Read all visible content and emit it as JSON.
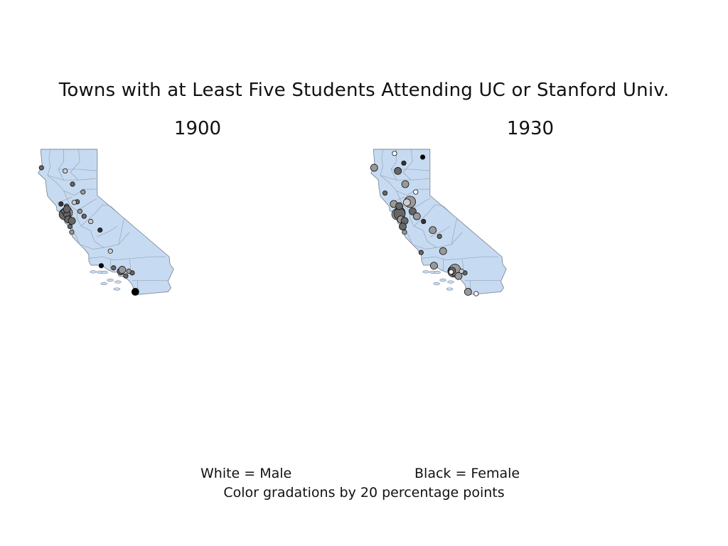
{
  "title": "Towns with at Least Five Students Attending UC or Stanford Univ.",
  "maps": [
    {
      "year": "1900",
      "towns": [
        {
          "lon": -124.16,
          "lat": 40.8,
          "share": 0.6,
          "size": 1
        },
        {
          "lon": -122.27,
          "lat": 37.87,
          "share": 0.4,
          "size": 3
        },
        {
          "lon": -122.42,
          "lat": 37.77,
          "share": 0.6,
          "size": 3
        },
        {
          "lon": -122.27,
          "lat": 37.8,
          "share": 0.6,
          "size": 2
        },
        {
          "lon": -122.17,
          "lat": 37.43,
          "share": 0.6,
          "size": 2
        },
        {
          "lon": -121.89,
          "lat": 37.34,
          "share": 0.6,
          "size": 2
        },
        {
          "lon": -122.03,
          "lat": 36.97,
          "share": 0.6,
          "size": 1
        },
        {
          "lon": -121.49,
          "lat": 38.58,
          "share": 0.6,
          "size": 1
        },
        {
          "lon": -121.29,
          "lat": 37.96,
          "share": 0.4,
          "size": 1
        },
        {
          "lon": -122.7,
          "lat": 38.44,
          "share": 0.8,
          "size": 1
        },
        {
          "lon": -122.29,
          "lat": 38.3,
          "share": 0.6,
          "size": 1
        },
        {
          "lon": -121.72,
          "lat": 38.54,
          "share": 0.2,
          "size": 1
        },
        {
          "lon": -122.52,
          "lat": 37.97,
          "share": 0.6,
          "size": 1
        },
        {
          "lon": -122.26,
          "lat": 38.1,
          "share": 0.6,
          "size": 2
        },
        {
          "lon": -121.9,
          "lat": 36.6,
          "share": 0.4,
          "size": 1
        },
        {
          "lon": -119.79,
          "lat": 36.74,
          "share": 0.8,
          "size": 1
        },
        {
          "lon": -119.02,
          "lat": 35.37,
          "share": 0.2,
          "size": 1
        },
        {
          "lon": -119.7,
          "lat": 34.42,
          "share": 1.0,
          "size": 1
        },
        {
          "lon": -118.24,
          "lat": 34.05,
          "share": 0.6,
          "size": 2
        },
        {
          "lon": -118.14,
          "lat": 34.15,
          "share": 0.4,
          "size": 2
        },
        {
          "lon": -117.39,
          "lat": 33.95,
          "share": 0.6,
          "size": 1
        },
        {
          "lon": -117.16,
          "lat": 32.72,
          "share": 1.0,
          "size": 2
        },
        {
          "lon": -117.87,
          "lat": 33.75,
          "share": 0.6,
          "size": 1
        },
        {
          "lon": -122.39,
          "lat": 40.59,
          "share": 0.2,
          "size": 1
        },
        {
          "lon": -121.84,
          "lat": 39.73,
          "share": 0.6,
          "size": 1
        },
        {
          "lon": -121.06,
          "lat": 39.22,
          "share": 0.4,
          "size": 1
        },
        {
          "lon": -120.98,
          "lat": 37.64,
          "share": 0.6,
          "size": 1
        },
        {
          "lon": -120.48,
          "lat": 37.3,
          "share": 0.2,
          "size": 1
        },
        {
          "lon": -118.78,
          "lat": 34.28,
          "share": 0.6,
          "size": 1
        },
        {
          "lon": -117.65,
          "lat": 34.06,
          "share": 0.4,
          "size": 1
        }
      ]
    },
    {
      "year": "1930",
      "towns": [
        {
          "lon": -124.16,
          "lat": 40.8,
          "share": 0.4,
          "size": 2
        },
        {
          "lon": -122.39,
          "lat": 40.59,
          "share": 0.6,
          "size": 2
        },
        {
          "lon": -121.84,
          "lat": 39.73,
          "share": 0.4,
          "size": 2
        },
        {
          "lon": -121.49,
          "lat": 38.58,
          "share": 0.4,
          "size": 3
        },
        {
          "lon": -121.72,
          "lat": 38.54,
          "share": 0.2,
          "size": 2
        },
        {
          "lon": -122.27,
          "lat": 37.87,
          "share": 0.6,
          "size": 3
        },
        {
          "lon": -122.42,
          "lat": 37.77,
          "share": 0.4,
          "size": 3
        },
        {
          "lon": -122.27,
          "lat": 37.8,
          "share": 0.6,
          "size": 3
        },
        {
          "lon": -122.17,
          "lat": 37.43,
          "share": 0.4,
          "size": 2
        },
        {
          "lon": -121.89,
          "lat": 37.34,
          "share": 0.6,
          "size": 2
        },
        {
          "lon": -122.03,
          "lat": 36.97,
          "share": 0.6,
          "size": 2
        },
        {
          "lon": -121.9,
          "lat": 36.6,
          "share": 0.4,
          "size": 1
        },
        {
          "lon": -121.29,
          "lat": 37.96,
          "share": 0.6,
          "size": 2
        },
        {
          "lon": -120.98,
          "lat": 37.64,
          "share": 0.4,
          "size": 2
        },
        {
          "lon": -119.79,
          "lat": 36.74,
          "share": 0.4,
          "size": 2
        },
        {
          "lon": -119.02,
          "lat": 35.37,
          "share": 0.4,
          "size": 2
        },
        {
          "lon": -119.7,
          "lat": 34.42,
          "share": 0.4,
          "size": 2
        },
        {
          "lon": -118.24,
          "lat": 34.05,
          "share": 0.6,
          "size": 3
        },
        {
          "lon": -118.14,
          "lat": 34.15,
          "share": 0.4,
          "size": 3
        },
        {
          "lon": -118.35,
          "lat": 34.09,
          "share": 0.6,
          "size": 2
        },
        {
          "lon": -117.87,
          "lat": 33.75,
          "share": 0.4,
          "size": 2
        },
        {
          "lon": -117.39,
          "lat": 33.95,
          "share": 0.6,
          "size": 1
        },
        {
          "lon": -117.16,
          "lat": 32.72,
          "share": 0.4,
          "size": 2
        },
        {
          "lon": -116.55,
          "lat": 32.6,
          "share": 0.0,
          "size": 1
        },
        {
          "lon": -120.66,
          "lat": 35.28,
          "share": 0.6,
          "size": 1
        },
        {
          "lon": -122.7,
          "lat": 38.44,
          "share": 0.4,
          "size": 2
        },
        {
          "lon": -122.29,
          "lat": 38.3,
          "share": 0.6,
          "size": 2
        },
        {
          "lon": -121.06,
          "lat": 39.22,
          "share": 0.0,
          "size": 1
        },
        {
          "lon": -120.48,
          "lat": 37.3,
          "share": 0.8,
          "size": 1
        },
        {
          "lon": -122.64,
          "lat": 41.73,
          "share": 0.0,
          "size": 1
        },
        {
          "lon": -120.54,
          "lat": 41.49,
          "share": 1.0,
          "size": 1
        },
        {
          "lon": -121.95,
          "lat": 41.1,
          "share": 0.8,
          "size": 1
        },
        {
          "lon": -118.42,
          "lat": 34.01,
          "share": 0.0,
          "size": 1
        },
        {
          "lon": -117.65,
          "lat": 34.06,
          "share": 0.2,
          "size": 1
        },
        {
          "lon": -119.29,
          "lat": 36.33,
          "share": 0.6,
          "size": 1
        },
        {
          "lon": -123.35,
          "lat": 39.15,
          "share": 0.6,
          "size": 1
        }
      ]
    }
  ],
  "legend": {
    "white": "White = Male",
    "black": "Black = Female",
    "note": "Color gradations by 20 percentage points"
  },
  "colors": {
    "land": "#c6dbf2",
    "boundary": "#7f8a96",
    "county_line": "#9aa4af",
    "marker_outline": "#111111"
  }
}
